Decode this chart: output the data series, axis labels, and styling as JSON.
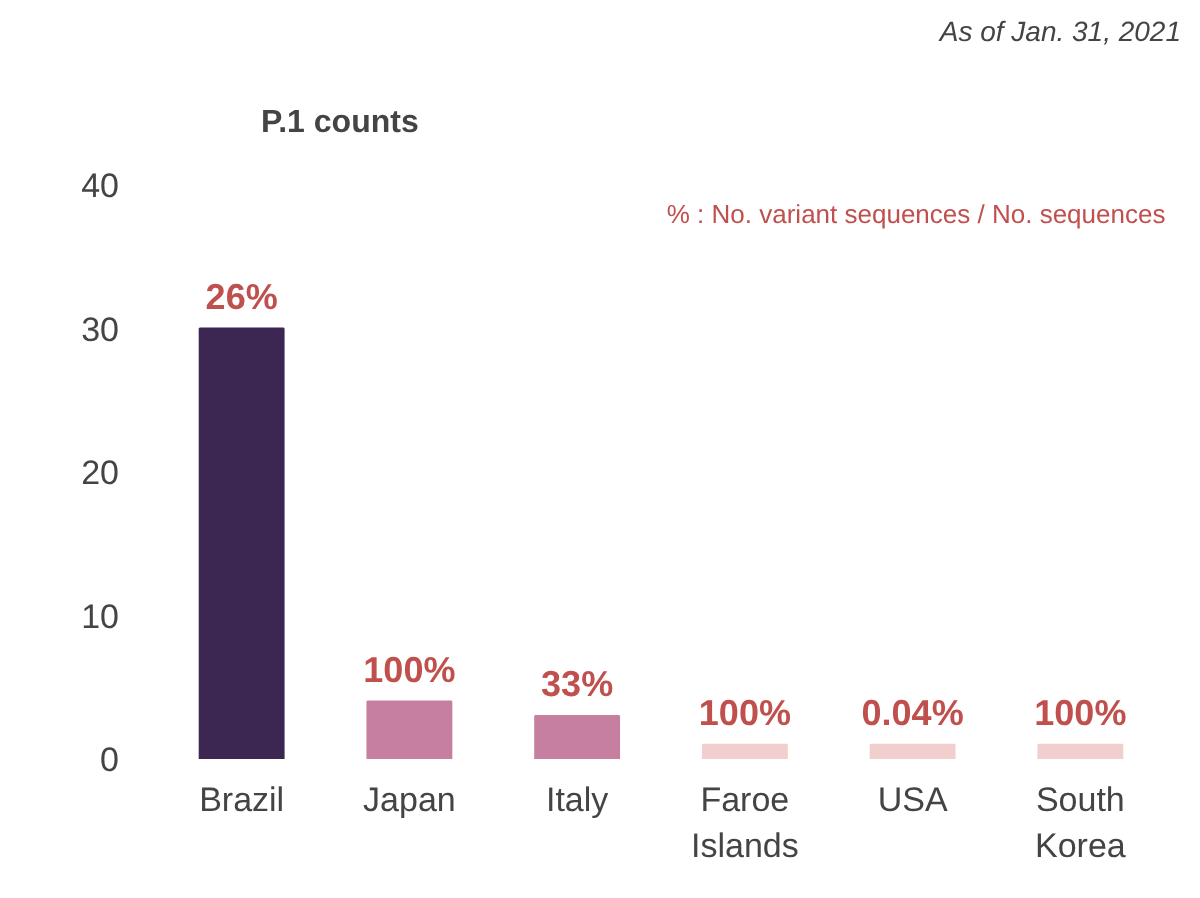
{
  "chart_data": {
    "type": "bar",
    "title": "P.1 counts",
    "categories": [
      "Brazil",
      "Japan",
      "Italy",
      "Faroe Islands",
      "USA",
      "South Korea"
    ],
    "values": [
      30,
      4,
      3,
      1,
      1,
      1
    ],
    "colors": [
      "#3b2752",
      "#c77f9f",
      "#c77f9f",
      "#f2cfcf",
      "#f2cfcf",
      "#f2cfcf"
    ],
    "ylim": [
      0,
      40
    ],
    "yticks": [
      0,
      10,
      20,
      30,
      40
    ],
    "grid": false,
    "annotations": [
      "As of Jan. 31, 2021",
      "% : No. variant sequences  / No. sequences",
      {
        "text": "26%",
        "x": "Brazil",
        "y": 30
      },
      {
        "text": "100%",
        "x": "Japan",
        "y": 4
      },
      {
        "text": "33%",
        "x": "Italy",
        "y": 3
      },
      {
        "text": "100%",
        "x": "Faroe Islands",
        "y": 1
      },
      {
        "text": "0.04%",
        "x": "USA",
        "y": 1
      },
      {
        "text": "100%",
        "x": "South Korea",
        "y": 1
      }
    ]
  }
}
